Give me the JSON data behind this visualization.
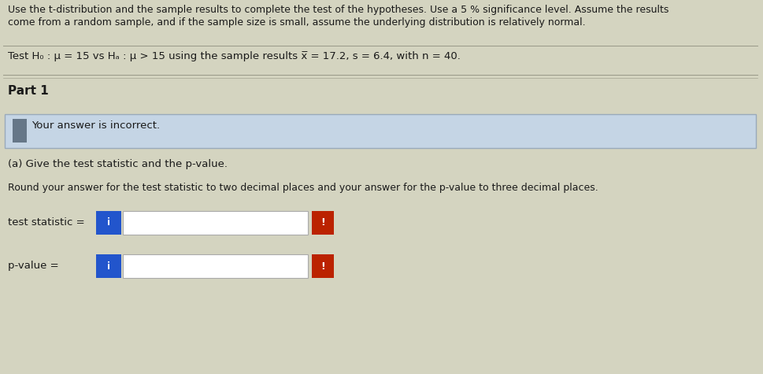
{
  "bg_color": "#d4d4c0",
  "text_color": "#1a1a1a",
  "intro_line1": "Use the t-distribution and the sample results to complete the test of the hypotheses. Use a 5 % significance level. Assume the results",
  "intro_line2": "come from a random sample, and if the sample size is small, assume the underlying distribution is relatively normal.",
  "hypothesis_text": "Test H₀ : μ = 15 vs Hₐ : μ > 15 using the sample results x̅ = 17.2, s = 6.4, with n = 40.",
  "part_label": "Part 1",
  "incorrect_text": "Your answer is incorrect.",
  "part_a_text": "(a) Give the test statistic and the p-value.",
  "round_text": "Round your answer for the test statistic to two decimal places and your answer for the p-value to three decimal places.",
  "test_stat_label": "test statistic =",
  "pvalue_label": "p-value =",
  "blue_color": "#2255cc",
  "red_color": "#bb2200",
  "input_border_color": "#aaaaaa",
  "banner_color": "#c5d5e5",
  "banner_border_color": "#99aabb",
  "separator_color": "#999988",
  "pencil_icon_color": "#667788"
}
